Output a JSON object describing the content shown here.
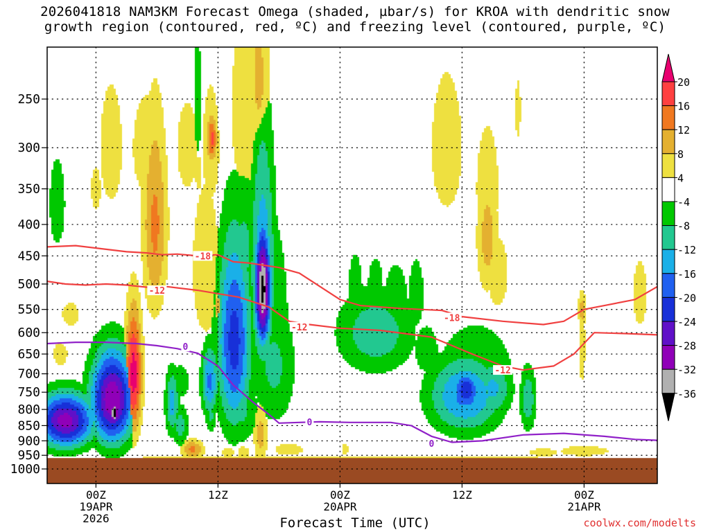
{
  "title": {
    "line1": "2026041818 NAM3KM Forecast Omega (shaded, µbar/s) for KROA with dendritic snow",
    "line2": "growth region (contoured, red, ºC) and freezing level (contoured, purple, ºC)"
  },
  "watermark": "coolwx.com/modelts",
  "chart_data": {
    "type": "heatmap",
    "title": "2026041818 NAM3KM Forecast Omega (shaded, µbar/s) for KROA with dendritic snow growth region (contoured, red, ºC) and freezing level (contoured, purple, ºC)",
    "xlabel": "Forecast Time (UTC)",
    "ylabel": "",
    "xlim": [
      -4.8,
      55.2
    ],
    "ylim": [
      1050,
      200
    ],
    "x_unit": "hours from 2026-04-19 00Z",
    "y_unit": "hPa",
    "grid": true,
    "y_ticks": [
      250,
      300,
      350,
      400,
      450,
      500,
      550,
      600,
      650,
      700,
      750,
      800,
      850,
      900,
      950,
      1000
    ],
    "x_ticks": [
      {
        "x": 0,
        "label": "00Z",
        "sub1": "19APR",
        "sub2": "2026"
      },
      {
        "x": 12,
        "label": "12Z",
        "sub1": "",
        "sub2": ""
      },
      {
        "x": 24,
        "label": "00Z",
        "sub1": "20APR",
        "sub2": ""
      },
      {
        "x": 36,
        "label": "12Z",
        "sub1": "",
        "sub2": ""
      },
      {
        "x": 48,
        "label": "00Z",
        "sub1": "21APR",
        "sub2": ""
      }
    ],
    "ground": {
      "pressure": 975,
      "color": "#9a4a22"
    },
    "colorbar": {
      "levels": [
        "20",
        "16",
        "12",
        "8",
        "4",
        "-4",
        "-8",
        "-12",
        "-16",
        "-20",
        "-24",
        "-28",
        "-32",
        "-36"
      ],
      "colors": [
        "#e8006f",
        "#ff4040",
        "#f07820",
        "#e4b030",
        "#eee040",
        "#ffffff",
        "#00c800",
        "#22c890",
        "#1ab0e8",
        "#2060f0",
        "#1830d8",
        "#6010c8",
        "#9000b8",
        "#b0b0b0",
        "#000000"
      ]
    },
    "omega_cells": [
      {
        "x": -3.8,
        "p": 370,
        "sx": 0.7,
        "sp": 55,
        "v": -7
      },
      {
        "x": -3.0,
        "p": 835,
        "sx": 2.0,
        "sp": 60,
        "v": -30
      },
      {
        "x": -3.2,
        "p": 850,
        "sx": 1.3,
        "sp": 35,
        "v": -24
      },
      {
        "x": -2.5,
        "p": 560,
        "sx": 1.2,
        "sp": 35,
        "v": 5
      },
      {
        "x": -3.5,
        "p": 650,
        "sx": 1.0,
        "sp": 40,
        "v": 5
      },
      {
        "x": 1.6,
        "p": 770,
        "sx": 1.5,
        "sp": 95,
        "v": -32
      },
      {
        "x": 1.8,
        "p": 810,
        "sx": 0.35,
        "sp": 25,
        "v": -40
      },
      {
        "x": 1.0,
        "p": 640,
        "sx": 1.2,
        "sp": 40,
        "v": -9
      },
      {
        "x": 1.5,
        "p": 300,
        "sx": 1.0,
        "sp": 60,
        "v": 7
      },
      {
        "x": 0.0,
        "p": 350,
        "sx": 0.7,
        "sp": 40,
        "v": 5
      },
      {
        "x": 3.7,
        "p": 700,
        "sx": 0.6,
        "sp": 120,
        "v": 22
      },
      {
        "x": 3.7,
        "p": 560,
        "sx": 1.2,
        "sp": 90,
        "v": 5
      },
      {
        "x": 5.8,
        "p": 400,
        "sx": 0.9,
        "sp": 110,
        "v": 13
      },
      {
        "x": 5.0,
        "p": 300,
        "sx": 2.0,
        "sp": 80,
        "v": 5
      },
      {
        "x": 7.5,
        "p": 780,
        "sx": 0.5,
        "sp": 70,
        "v": -14
      },
      {
        "x": 8.3,
        "p": 850,
        "sx": 0.6,
        "sp": 50,
        "v": -10
      },
      {
        "x": 8.3,
        "p": 720,
        "sx": 0.8,
        "sp": 40,
        "v": -7
      },
      {
        "x": 9.5,
        "p": 930,
        "sx": 0.8,
        "sp": 25,
        "v": 13
      },
      {
        "x": 10.8,
        "p": 470,
        "sx": 1.4,
        "sp": 140,
        "v": 6
      },
      {
        "x": 9.0,
        "p": 300,
        "sx": 1.5,
        "sp": 70,
        "v": 5
      },
      {
        "x": 11.2,
        "p": 720,
        "sx": 0.6,
        "sp": 70,
        "v": -17
      },
      {
        "x": 11.3,
        "p": 820,
        "sx": 0.4,
        "sp": 40,
        "v": -9
      },
      {
        "x": 11.4,
        "p": 290,
        "sx": 0.4,
        "sp": 20,
        "v": 17
      },
      {
        "x": 11.3,
        "p": 300,
        "sx": 0.9,
        "sp": 70,
        "v": 6
      },
      {
        "x": 10.1,
        "p": 330,
        "sx": 0.5,
        "sp": 30,
        "v": 5
      },
      {
        "x": 10.0,
        "p": 250,
        "sx": 0.4,
        "sp": 60,
        "v": -6
      },
      {
        "x": 12.0,
        "p": 545,
        "sx": 0.3,
        "sp": 30,
        "v": 10
      },
      {
        "x": 13.6,
        "p": 620,
        "sx": 1.2,
        "sp": 160,
        "v": -22
      },
      {
        "x": 14.5,
        "p": 440,
        "sx": 1.3,
        "sp": 90,
        "v": -9
      },
      {
        "x": 14.3,
        "p": 800,
        "sx": 1.2,
        "sp": 80,
        "v": -9
      },
      {
        "x": 16.4,
        "p": 510,
        "sx": 0.55,
        "sp": 80,
        "v": -38
      },
      {
        "x": 16.4,
        "p": 480,
        "sx": 0.9,
        "sp": 160,
        "v": -16
      },
      {
        "x": 15.5,
        "p": 440,
        "sx": 1.9,
        "sp": 100,
        "v": -7
      },
      {
        "x": 17.5,
        "p": 680,
        "sx": 1.6,
        "sp": 120,
        "v": -9
      },
      {
        "x": 16.5,
        "p": 560,
        "sx": 2.6,
        "sp": 220,
        "v": -6
      },
      {
        "x": 14.8,
        "p": 260,
        "sx": 1.6,
        "sp": 100,
        "v": 6
      },
      {
        "x": 16.0,
        "p": 230,
        "sx": 0.9,
        "sp": 60,
        "v": 9
      },
      {
        "x": 14.5,
        "p": 940,
        "sx": 0.8,
        "sp": 30,
        "v": 5
      },
      {
        "x": 16.2,
        "p": 880,
        "sx": 0.5,
        "sp": 70,
        "v": 10
      },
      {
        "x": 13.0,
        "p": 940,
        "sx": 0.8,
        "sp": 25,
        "v": 5
      },
      {
        "x": 19.0,
        "p": 930,
        "sx": 2.0,
        "sp": 30,
        "v": 5
      },
      {
        "x": 25.5,
        "p": 520,
        "sx": 0.8,
        "sp": 80,
        "v": -6
      },
      {
        "x": 27.5,
        "p": 600,
        "sx": 2.8,
        "sp": 70,
        "v": -11
      },
      {
        "x": 29.5,
        "p": 560,
        "sx": 1.2,
        "sp": 90,
        "v": -7
      },
      {
        "x": 27.5,
        "p": 500,
        "sx": 0.8,
        "sp": 50,
        "v": -6
      },
      {
        "x": 31.5,
        "p": 520,
        "sx": 0.8,
        "sp": 70,
        "v": -6
      },
      {
        "x": 32.5,
        "p": 640,
        "sx": 1.2,
        "sp": 60,
        "v": -6
      },
      {
        "x": 24.5,
        "p": 930,
        "sx": 0.5,
        "sp": 30,
        "v": 5
      },
      {
        "x": 36.3,
        "p": 760,
        "sx": 2.6,
        "sp": 80,
        "v": -17
      },
      {
        "x": 36.4,
        "p": 745,
        "sx": 1.0,
        "sp": 40,
        "v": -24
      },
      {
        "x": 39.0,
        "p": 740,
        "sx": 1.4,
        "sp": 60,
        "v": -13
      },
      {
        "x": 37.3,
        "p": 690,
        "sx": 3.0,
        "sp": 90,
        "v": -8
      },
      {
        "x": 42.5,
        "p": 770,
        "sx": 0.6,
        "sp": 70,
        "v": -11
      },
      {
        "x": 34.5,
        "p": 300,
        "sx": 2.2,
        "sp": 110,
        "v": 5
      },
      {
        "x": 38.5,
        "p": 350,
        "sx": 1.6,
        "sp": 110,
        "v": 5
      },
      {
        "x": 38.5,
        "p": 420,
        "sx": 0.8,
        "sp": 70,
        "v": 10
      },
      {
        "x": 39.5,
        "p": 480,
        "sx": 1.5,
        "sp": 90,
        "v": 5
      },
      {
        "x": 41.5,
        "p": 260,
        "sx": 0.4,
        "sp": 40,
        "v": 5
      },
      {
        "x": 47.8,
        "p": 630,
        "sx": 0.45,
        "sp": 130,
        "v": 5
      },
      {
        "x": 47.8,
        "p": 550,
        "sx": 0.3,
        "sp": 30,
        "v": 10
      },
      {
        "x": 53.5,
        "p": 520,
        "sx": 1.0,
        "sp": 90,
        "v": 5
      },
      {
        "x": 48.0,
        "p": 935,
        "sx": 3.5,
        "sp": 25,
        "v": 5
      },
      {
        "x": 44.0,
        "p": 940,
        "sx": 2.0,
        "sp": 20,
        "v": 5
      },
      {
        "x": 24.0,
        "p": 960,
        "sx": 30.0,
        "sp": 12,
        "v": 5
      }
    ],
    "contours": [
      {
        "name": "-18 isotherm",
        "color": "#f04040",
        "label": "-18",
        "label_at": [
          [
            10.5,
            450
          ],
          [
            35.0,
            567
          ]
        ],
        "points": [
          [
            -4.8,
            435
          ],
          [
            -2,
            433
          ],
          [
            0,
            437
          ],
          [
            3,
            443
          ],
          [
            5,
            445
          ],
          [
            6.5,
            448
          ],
          [
            8,
            447
          ],
          [
            10,
            450
          ],
          [
            12,
            448
          ],
          [
            13.5,
            460
          ],
          [
            15,
            462
          ],
          [
            18,
            470
          ],
          [
            20,
            480
          ],
          [
            24,
            530
          ],
          [
            26,
            542
          ],
          [
            30,
            548
          ],
          [
            34,
            552
          ],
          [
            36,
            565
          ],
          [
            40,
            575
          ],
          [
            44,
            582
          ],
          [
            46,
            575
          ],
          [
            48,
            550
          ],
          [
            50,
            542
          ],
          [
            53,
            530
          ],
          [
            55.2,
            505
          ]
        ]
      },
      {
        "name": "-12 isotherm",
        "color": "#f04040",
        "label": "-12",
        "label_at": [
          [
            6.0,
            512
          ],
          [
            20.0,
            587
          ],
          [
            40.0,
            690
          ]
        ],
        "points": [
          [
            -4.8,
            495
          ],
          [
            -3,
            500
          ],
          [
            -1,
            502
          ],
          [
            1,
            500
          ],
          [
            3,
            502
          ],
          [
            5,
            506
          ],
          [
            7,
            505
          ],
          [
            10,
            512
          ],
          [
            14,
            525
          ],
          [
            17,
            545
          ],
          [
            19,
            575
          ],
          [
            21,
            582
          ],
          [
            24,
            590
          ],
          [
            28,
            595
          ],
          [
            33,
            610
          ],
          [
            37,
            650
          ],
          [
            40,
            680
          ],
          [
            42,
            690
          ],
          [
            45,
            680
          ],
          [
            47,
            650
          ],
          [
            49,
            600
          ],
          [
            52,
            602
          ],
          [
            55.2,
            605
          ]
        ]
      },
      {
        "name": "0 freezing level",
        "color": "#9020c8",
        "label": "0",
        "label_at": [
          [
            8.8,
            632
          ],
          [
            21.0,
            838
          ],
          [
            33.0,
            908
          ]
        ],
        "points": [
          [
            -4.8,
            625
          ],
          [
            -2,
            622
          ],
          [
            1,
            622
          ],
          [
            4,
            625
          ],
          [
            6,
            630
          ],
          [
            8,
            637
          ],
          [
            10,
            648
          ],
          [
            12,
            680
          ],
          [
            13.5,
            730
          ],
          [
            15.5,
            780
          ],
          [
            17,
            815
          ],
          [
            18,
            842
          ],
          [
            20,
            840
          ],
          [
            22,
            838
          ],
          [
            25,
            840
          ],
          [
            29,
            840
          ],
          [
            31,
            850
          ],
          [
            33,
            885
          ],
          [
            35,
            905
          ],
          [
            38,
            900
          ],
          [
            42,
            880
          ],
          [
            46,
            875
          ],
          [
            50,
            885
          ],
          [
            53,
            895
          ],
          [
            55.2,
            898
          ]
        ]
      }
    ]
  }
}
